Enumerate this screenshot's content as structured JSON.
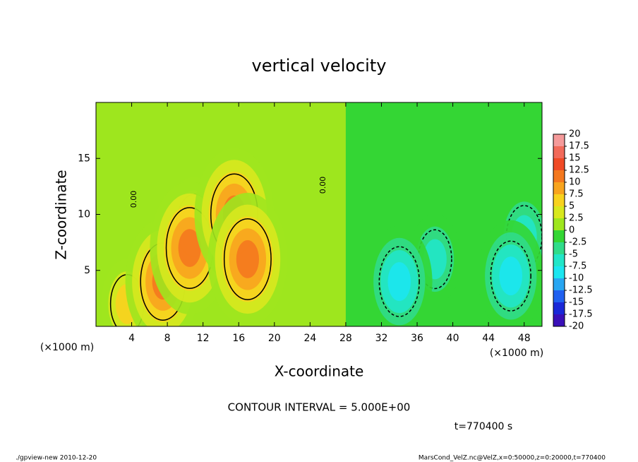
{
  "chart_data": {
    "type": "contour",
    "title": "vertical velocity",
    "x_label": "X-coordinate",
    "y_label": "Z-coordinate",
    "x_unit": "(×1000 m)",
    "contour_interval": "CONTOUR INTERVAL = 5.000E+00",
    "time_label": "t=770400 s",
    "footer_left": "./gpview-new  2010-12-20",
    "footer_right": "MarsCond_VelZ.nc@VelZ,x=0:50000,z=0:20000,t=770400",
    "contour_label": "0.00",
    "xlim": [
      0,
      50
    ],
    "ylim": [
      0,
      20
    ],
    "xticks": [
      4,
      8,
      12,
      16,
      20,
      24,
      28,
      32,
      36,
      40,
      44,
      48
    ],
    "yticks": [
      5,
      10,
      15
    ],
    "colorbar": {
      "levels": [
        20,
        17.5,
        15,
        12.5,
        10,
        7.5,
        5,
        2.5,
        0,
        -2.5,
        -5,
        -7.5,
        -10,
        -12.5,
        -15,
        -17.5,
        -20
      ],
      "colors": [
        "#f59a9a",
        "#f26a5a",
        "#f04a26",
        "#f4781e",
        "#f8a41e",
        "#f8d21e",
        "#d8e81e",
        "#9ee61e",
        "#34d634",
        "#30dc8a",
        "#22e6c8",
        "#1ce6f0",
        "#28a6f2",
        "#2060f0",
        "#1a28d8",
        "#3a10b8"
      ]
    },
    "features": [
      {
        "x": 11,
        "y": 9,
        "value": 7
      },
      {
        "x": 3.5,
        "y": 2,
        "value": 6
      },
      {
        "x": 7.5,
        "y": 4,
        "value": 11
      },
      {
        "x": 10.5,
        "y": 7,
        "value": 12
      },
      {
        "x": 15.5,
        "y": 10,
        "value": 12
      },
      {
        "x": 17,
        "y": 6,
        "value": 12
      },
      {
        "x": 38,
        "y": 6,
        "value": -6
      },
      {
        "x": 48,
        "y": 8,
        "value": -7
      },
      {
        "x": 34,
        "y": 4,
        "value": -9
      },
      {
        "x": 46.5,
        "y": 4.5,
        "value": -9
      }
    ]
  }
}
